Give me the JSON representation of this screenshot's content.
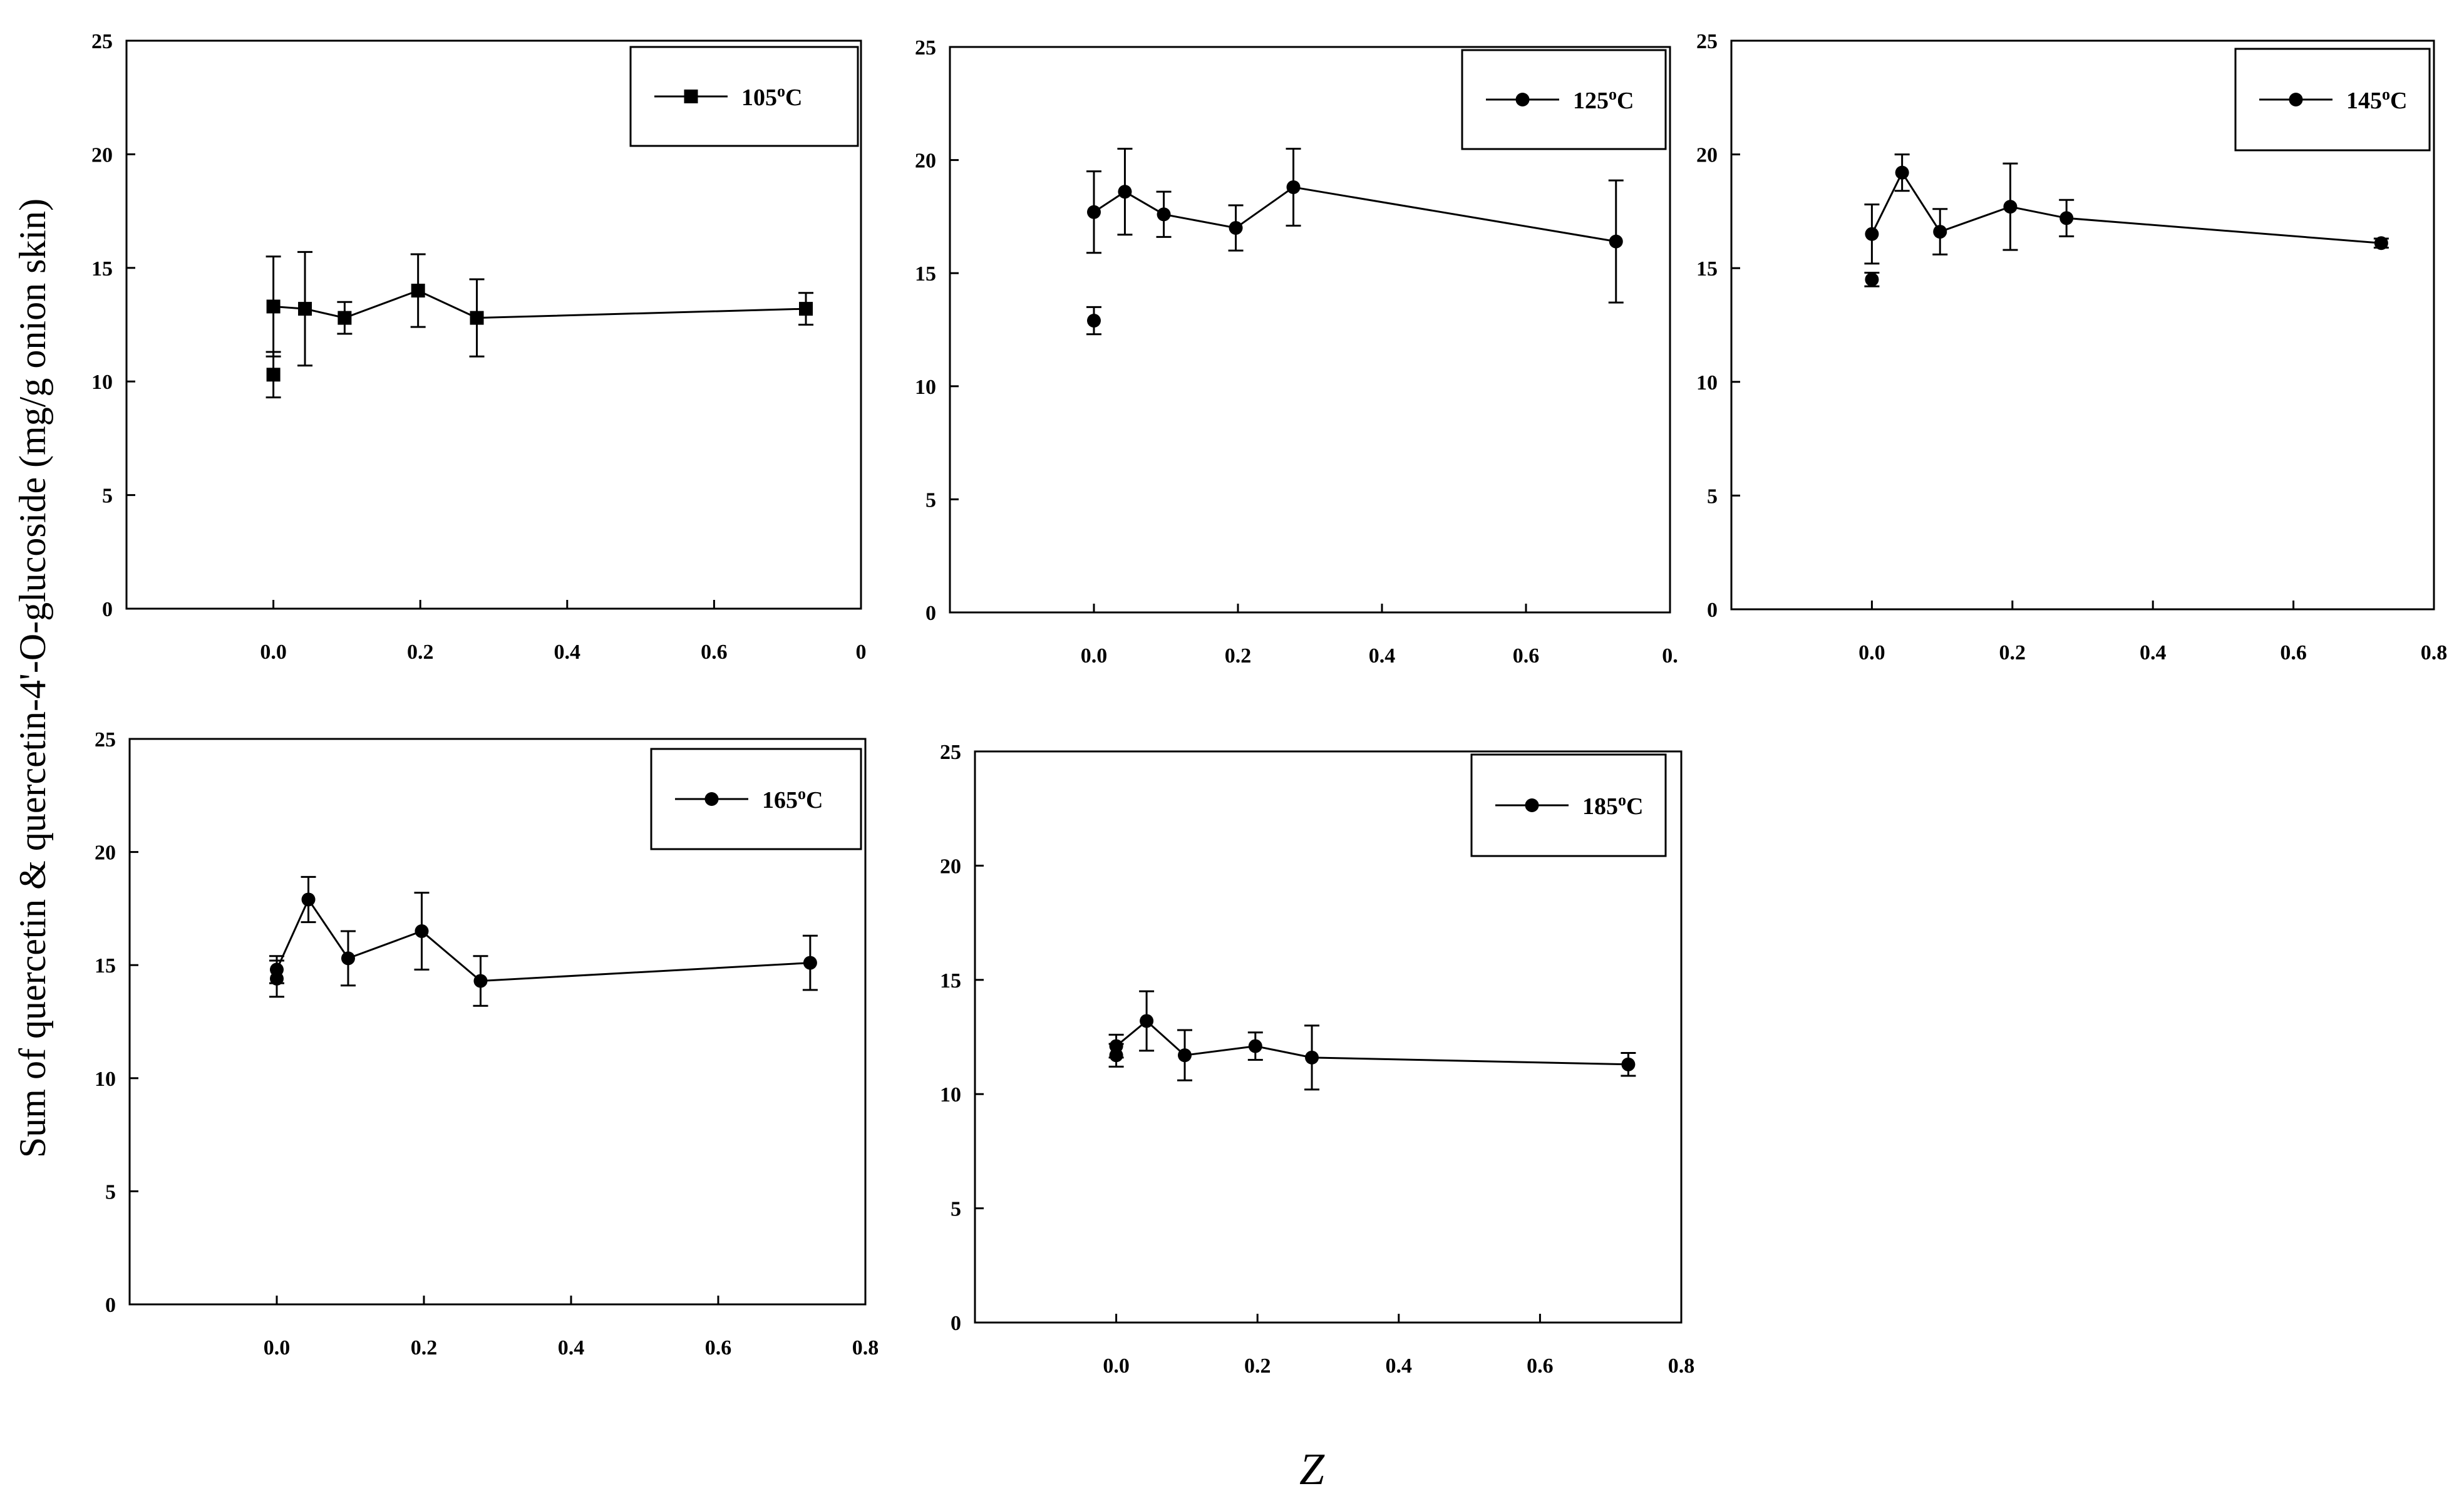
{
  "figure": {
    "ylabel": "Sum of quercetin & quercetin-4'-O-glucoside (mg/g onion skin)",
    "xlabel": "Z"
  },
  "chart_data": [
    {
      "type": "scatter",
      "legend": {
        "label": "105",
        "unit": "oC",
        "position": "top-right",
        "marker": "square"
      },
      "xlim": [
        -0.2,
        0.8
      ],
      "ylim": [
        0,
        25
      ],
      "xticks": [
        "0.0",
        "0.2",
        "0.4",
        "0.6",
        "0"
      ],
      "yticks": [
        "0",
        "5",
        "10",
        "15",
        "20",
        "25"
      ],
      "series": [
        {
          "points": [
            {
              "x": 0.0,
              "y": 10.3,
              "err": 1.0
            },
            {
              "x": 0.0,
              "y": 13.3,
              "err": 2.2
            },
            {
              "x": 0.043,
              "y": 13.2,
              "err": 2.5
            },
            {
              "x": 0.097,
              "y": 12.8,
              "err": 0.7
            },
            {
              "x": 0.197,
              "y": 14.0,
              "err": 1.6
            },
            {
              "x": 0.277,
              "y": 12.8,
              "err": 1.7
            },
            {
              "x": 0.725,
              "y": 13.2,
              "err": 0.7
            }
          ]
        }
      ]
    },
    {
      "type": "scatter",
      "legend": {
        "label": "125",
        "unit": "oC",
        "position": "top-right",
        "marker": "circle"
      },
      "xlim": [
        -0.2,
        0.8
      ],
      "ylim": [
        0,
        25
      ],
      "xticks": [
        "0.0",
        "0.2",
        "0.4",
        "0.6",
        "0."
      ],
      "yticks": [
        "0",
        "5",
        "10",
        "15",
        "20",
        "25"
      ],
      "series": [
        {
          "points": [
            {
              "x": 0.0,
              "y": 12.9,
              "err": 0.6
            },
            {
              "x": 0.0,
              "y": 17.7,
              "err": 1.8
            },
            {
              "x": 0.043,
              "y": 18.6,
              "err": 1.9
            },
            {
              "x": 0.097,
              "y": 17.6,
              "err": 1.0
            },
            {
              "x": 0.197,
              "y": 17.0,
              "err": 1.0
            },
            {
              "x": 0.277,
              "y": 18.8,
              "err": 1.7
            },
            {
              "x": 0.725,
              "y": 16.4,
              "err": 2.7
            }
          ]
        }
      ]
    },
    {
      "type": "scatter",
      "legend": {
        "label": "145",
        "unit": "oC",
        "position": "top-right",
        "marker": "circle"
      },
      "xlim": [
        -0.2,
        0.8
      ],
      "ylim": [
        0,
        25
      ],
      "xticks": [
        "0.0",
        "0.2",
        "0.4",
        "0.6",
        "0.8"
      ],
      "yticks": [
        "0",
        "5",
        "10",
        "15",
        "20",
        "25"
      ],
      "series": [
        {
          "points": [
            {
              "x": 0.0,
              "y": 14.5,
              "err": 0.3
            },
            {
              "x": 0.0,
              "y": 16.5,
              "err": 1.3
            },
            {
              "x": 0.043,
              "y": 19.2,
              "err": 0.8
            },
            {
              "x": 0.097,
              "y": 16.6,
              "err": 1.0
            },
            {
              "x": 0.197,
              "y": 17.7,
              "err": 1.9
            },
            {
              "x": 0.277,
              "y": 17.2,
              "err": 0.8
            },
            {
              "x": 0.725,
              "y": 16.1,
              "err": 0.2
            }
          ]
        }
      ]
    },
    {
      "type": "scatter",
      "legend": {
        "label": "165",
        "unit": "oC",
        "position": "top-right",
        "marker": "circle"
      },
      "xlim": [
        -0.2,
        0.8
      ],
      "ylim": [
        0,
        25
      ],
      "xticks": [
        "0.0",
        "0.2",
        "0.4",
        "0.6",
        "0.8"
      ],
      "yticks": [
        "0",
        "5",
        "10",
        "15",
        "20",
        "25"
      ],
      "series": [
        {
          "points": [
            {
              "x": 0.0,
              "y": 14.4,
              "err": 0.8
            },
            {
              "x": 0.0,
              "y": 14.8,
              "err": 0.6
            },
            {
              "x": 0.043,
              "y": 17.9,
              "err": 1.0
            },
            {
              "x": 0.097,
              "y": 15.3,
              "err": 1.2
            },
            {
              "x": 0.197,
              "y": 16.5,
              "err": 1.7
            },
            {
              "x": 0.277,
              "y": 14.3,
              "err": 1.1
            },
            {
              "x": 0.725,
              "y": 15.1,
              "err": 1.2
            }
          ]
        }
      ]
    },
    {
      "type": "scatter",
      "legend": {
        "label": "185",
        "unit": "oC",
        "position": "top-right",
        "marker": "circle"
      },
      "xlim": [
        -0.2,
        0.8
      ],
      "ylim": [
        0,
        25
      ],
      "xticks": [
        "0.0",
        "0.2",
        "0.4",
        "0.6",
        "0.8"
      ],
      "yticks": [
        "0",
        "5",
        "10",
        "15",
        "20",
        "25"
      ],
      "series": [
        {
          "points": [
            {
              "x": 0.0,
              "y": 11.7,
              "err": 0.5
            },
            {
              "x": 0.0,
              "y": 12.1,
              "err": 0.5
            },
            {
              "x": 0.043,
              "y": 13.2,
              "err": 1.3
            },
            {
              "x": 0.097,
              "y": 11.7,
              "err": 1.1
            },
            {
              "x": 0.197,
              "y": 12.1,
              "err": 0.6
            },
            {
              "x": 0.277,
              "y": 11.6,
              "err": 1.4
            },
            {
              "x": 0.725,
              "y": 11.3,
              "err": 0.5
            }
          ]
        }
      ]
    }
  ]
}
